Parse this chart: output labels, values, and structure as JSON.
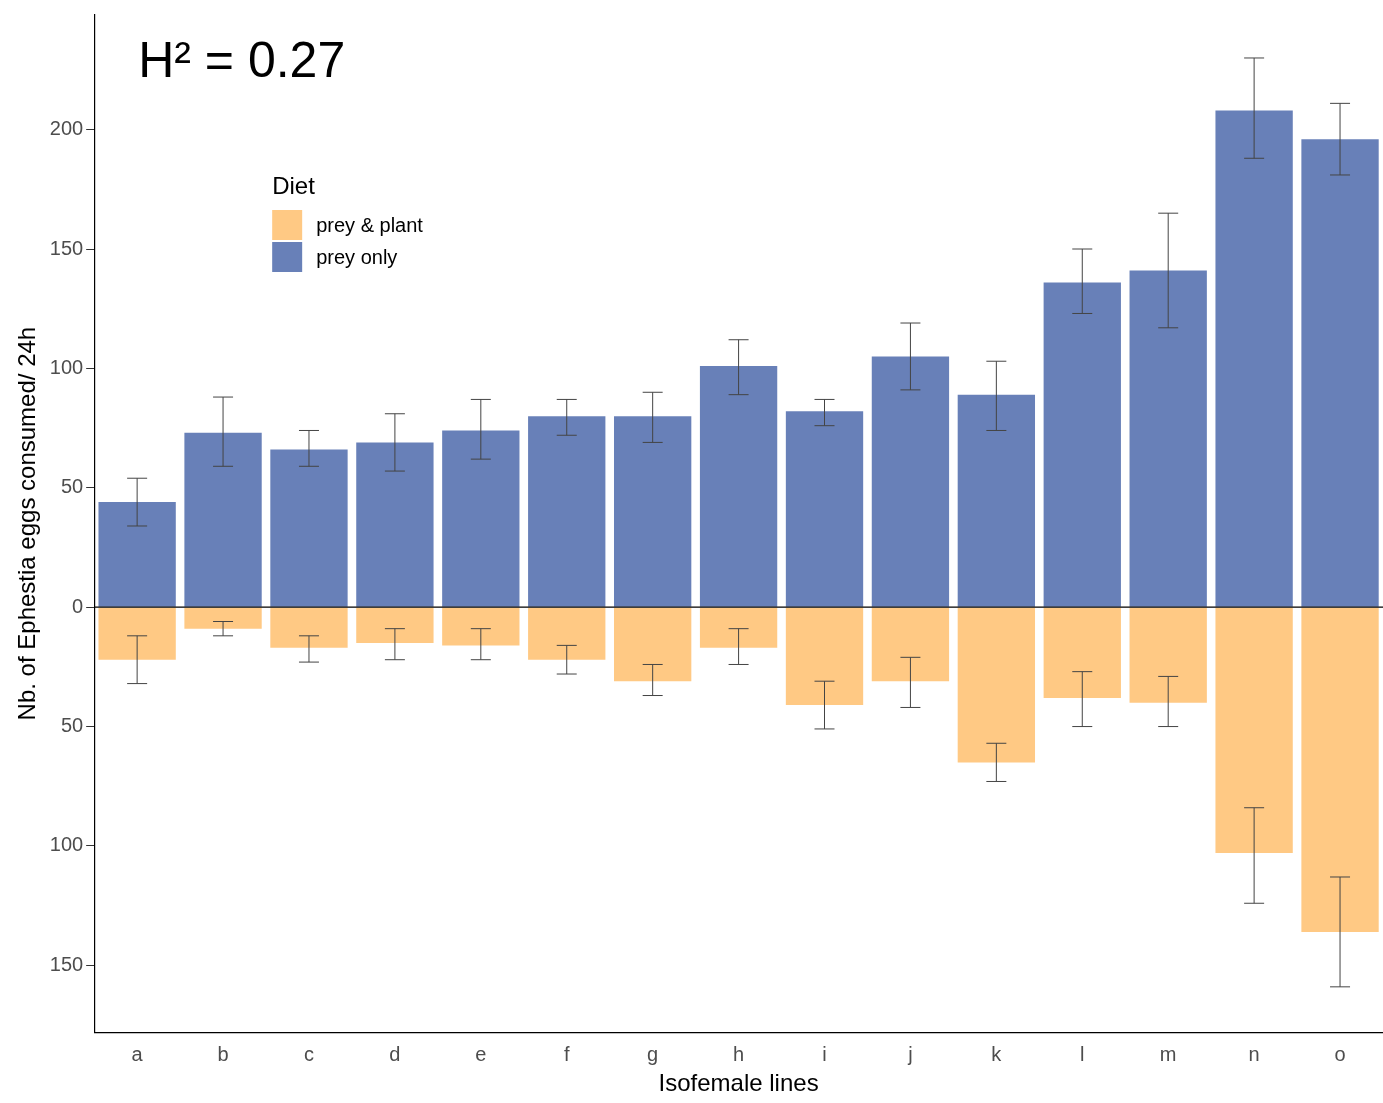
{
  "chart_data": {
    "type": "bar",
    "stacked": true,
    "xlabel": "Isofemale lines",
    "ylabel": "Nb. of Ephestia eggs consumed/ 24h",
    "legend_title": "Diet",
    "legend": "top left",
    "grid": false,
    "annotations": [
      "H² = 0.27"
    ],
    "categories": [
      "a",
      "b",
      "c",
      "d",
      "e",
      "f",
      "g",
      "h",
      "i",
      "j",
      "k",
      "l",
      "m",
      "n",
      "o"
    ],
    "ylim": [
      -178,
      248
    ],
    "yticks": [
      {
        "value": -150,
        "label": "150"
      },
      {
        "value": -100,
        "label": "100"
      },
      {
        "value": -50,
        "label": "50"
      },
      0,
      50,
      100,
      150,
      200
    ],
    "ref_lines": [
      {
        "axis": "y",
        "value": 0,
        "color": "#000000"
      }
    ],
    "series": [
      {
        "name": "prey & plant",
        "color": "#ffc984",
        "values": [
          -22,
          -9,
          -17,
          -15,
          -16,
          -22,
          -31,
          -17,
          -41,
          -31,
          -65,
          -38,
          -40,
          -103,
          -136
        ],
        "errors": [
          [
            -32,
            -12
          ],
          [
            -12,
            -6
          ],
          [
            -23,
            -12
          ],
          [
            -22,
            -9
          ],
          [
            -22,
            -9
          ],
          [
            -28,
            -16
          ],
          [
            -37,
            -24
          ],
          [
            -24,
            -9
          ],
          [
            -51,
            -31
          ],
          [
            -42,
            -21
          ],
          [
            -73,
            -57
          ],
          [
            -50,
            -27
          ],
          [
            -50,
            -29
          ],
          [
            -124,
            -84
          ],
          [
            -159,
            -113
          ]
        ]
      },
      {
        "name": "prey only",
        "color": "#6880b8",
        "values": [
          44,
          73,
          66,
          69,
          74,
          80,
          80,
          101,
          82,
          105,
          89,
          136,
          141,
          208,
          196
        ],
        "errors": [
          [
            34,
            54
          ],
          [
            59,
            88
          ],
          [
            59,
            74
          ],
          [
            57,
            81
          ],
          [
            62,
            87
          ],
          [
            72,
            87
          ],
          [
            69,
            90
          ],
          [
            89,
            112
          ],
          [
            76,
            87
          ],
          [
            91,
            119
          ],
          [
            74,
            103
          ],
          [
            123,
            150
          ],
          [
            117,
            165
          ],
          [
            188,
            230
          ],
          [
            181,
            211
          ]
        ]
      }
    ]
  }
}
